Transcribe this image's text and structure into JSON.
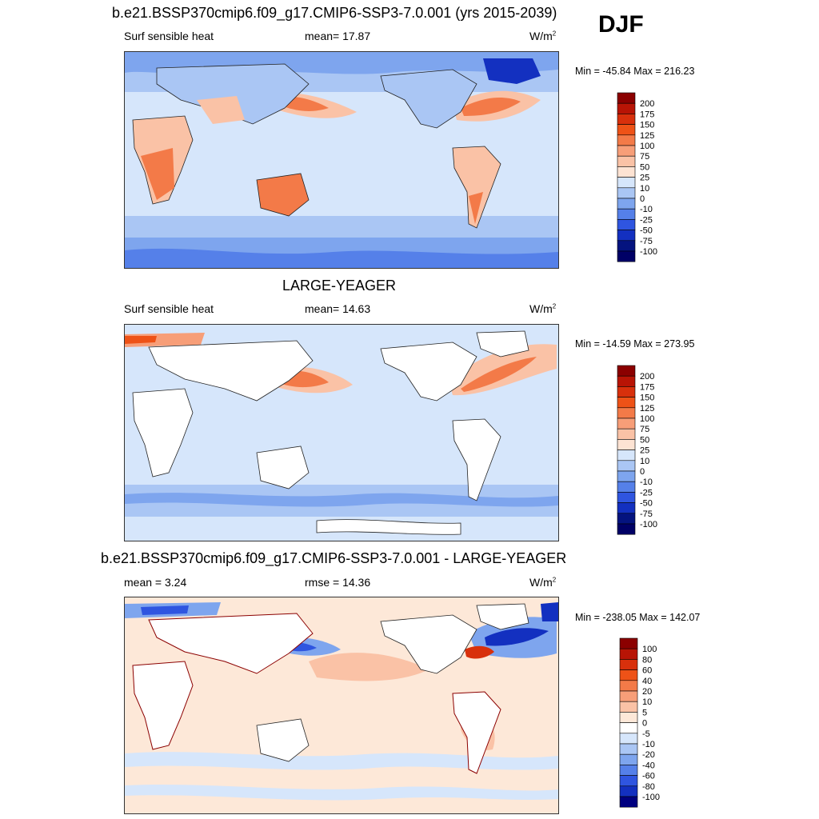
{
  "season": "DJF",
  "panels": [
    {
      "title": "b.e21.BSSP370cmip6.f09_g17.CMIP6-SSP3-7.0.001 (yrs 2015-2039)",
      "left_label": "Surf sensible heat",
      "center_label": "mean=  17.87",
      "units": "W/m",
      "units_exp": "2",
      "minmax": "Min = -45.84 Max = 216.23",
      "colorbar_labels": [
        "200",
        "175",
        "150",
        "125",
        "100",
        "75",
        "50",
        "25",
        "10",
        "0",
        "-10",
        "-25",
        "-50",
        "-75",
        "-100"
      ],
      "colorbar_colors": [
        "#8b0000",
        "#b81405",
        "#d8300c",
        "#ee5217",
        "#f37a48",
        "#f79e78",
        "#fac2a6",
        "#fde3d3",
        "#d6e6fb",
        "#aac6f4",
        "#7ea5ee",
        "#5580e9",
        "#2f55e0",
        "#1330c0",
        "#04137f",
        "#000066"
      ]
    },
    {
      "title": "LARGE-YEAGER",
      "left_label": "Surf sensible heat",
      "center_label": "mean=  14.63",
      "units": "W/m",
      "units_exp": "2",
      "minmax": "Min = -14.59 Max = 273.95",
      "colorbar_labels": [
        "200",
        "175",
        "150",
        "125",
        "100",
        "75",
        "50",
        "25",
        "10",
        "0",
        "-10",
        "-25",
        "-50",
        "-75",
        "-100"
      ],
      "colorbar_colors": [
        "#8b0000",
        "#b81405",
        "#d8300c",
        "#ee5217",
        "#f37a48",
        "#f79e78",
        "#fac2a6",
        "#fde3d3",
        "#d6e6fb",
        "#aac6f4",
        "#7ea5ee",
        "#5580e9",
        "#2f55e0",
        "#1330c0",
        "#04137f",
        "#000066"
      ]
    },
    {
      "title": "b.e21.BSSP370cmip6.f09_g17.CMIP6-SSP3-7.0.001 - LARGE-YEAGER",
      "left_label": "mean =   3.24",
      "center_label": "rmse =  14.36",
      "units": "W/m",
      "units_exp": "2",
      "minmax": "Min = -238.05 Max = 142.07",
      "colorbar_labels": [
        "100",
        "80",
        "60",
        "40",
        "20",
        "10",
        "5",
        "0",
        "-5",
        "-10",
        "-20",
        "-40",
        "-60",
        "-80",
        "-100"
      ],
      "colorbar_colors": [
        "#8b0000",
        "#b81405",
        "#d8300c",
        "#ee5217",
        "#f37a48",
        "#f79e78",
        "#fac2a6",
        "#fde8d8",
        "#ffffff",
        "#d6e6fb",
        "#aac6f4",
        "#7ea5ee",
        "#5580e9",
        "#2f55e0",
        "#1330c0",
        "#000080"
      ]
    }
  ],
  "colors": {
    "ocean_light_blue": "#d6e6fb",
    "ocean_mid_blue": "#aac6f4",
    "ocean_blue": "#7ea5ee",
    "warm_light": "#fde3d3",
    "warm_mid": "#f79e78",
    "warm_strong": "#ee5217",
    "land": "#ffffff",
    "coast": "#222222"
  }
}
